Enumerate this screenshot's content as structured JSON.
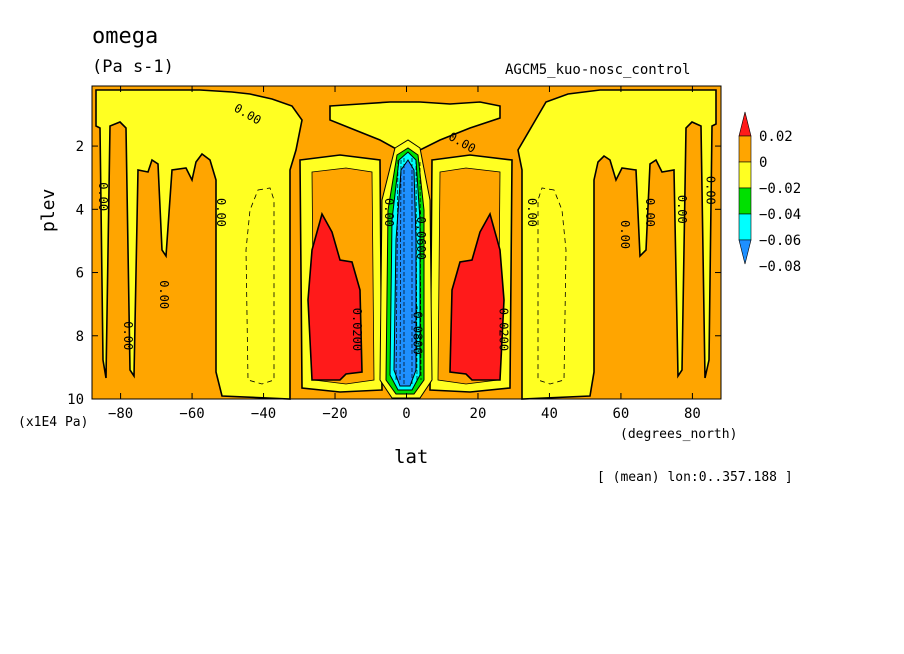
{
  "title": "omega",
  "units": "(Pa s-1)",
  "experiment": "AGCM5_kuo-nosc_control",
  "footnote": "[ (mean) lon:0..357.188 ]",
  "colors": {
    "positive_strong": "#ff1a1a",
    "positive_weak": "#ffa500",
    "negative_weak": "#ffff22",
    "negative_medium": "#00e000",
    "negative_strong": "#00ffff",
    "negative_max": "#1e90ff"
  },
  "chart_data": {
    "type": "heatmap",
    "title": "omega",
    "xlabel": "lat",
    "ylabel": "plev",
    "x_unit_label": "(degrees_north)",
    "y_unit_label": "(x1E4 Pa)",
    "xlim": [
      -88,
      88
    ],
    "ylim": [
      10,
      0.1
    ],
    "x_ticks": [
      -80,
      -60,
      -40,
      -20,
      0,
      20,
      40,
      60,
      80
    ],
    "y_ticks": [
      2,
      4,
      6,
      8,
      10
    ],
    "colorbar": {
      "labels": [
        "0.02",
        "0",
        "-0.02",
        "-0.04",
        "-0.06",
        "-0.08"
      ],
      "levels": [
        0.02,
        0,
        -0.02,
        -0.04,
        -0.06,
        -0.08
      ],
      "colors": [
        "#ff1a1a",
        "#ffa500",
        "#ffff22",
        "#00e000",
        "#00ffff",
        "#1e90ff"
      ]
    },
    "contour_labels": [
      {
        "text": "0.00",
        "lat": -45,
        "plev": 1.1
      },
      {
        "text": "0.00",
        "lat": 15,
        "plev": 2.0
      },
      {
        "text": "0.00",
        "lat": -86,
        "plev": 3.6
      },
      {
        "text": "0.00",
        "lat": -53,
        "plev": 4.1
      },
      {
        "text": "0.00",
        "lat": -6,
        "plev": 4.1
      },
      {
        "text": "0.00",
        "lat": 34,
        "plev": 4.1
      },
      {
        "text": "0.00",
        "lat": 84,
        "plev": 3.4
      },
      {
        "text": "0.00",
        "lat": 76,
        "plev": 4.0
      },
      {
        "text": "0.00",
        "lat": 67,
        "plev": 4.1
      },
      {
        "text": "0.00",
        "lat": 60,
        "plev": 4.8
      },
      {
        "text": "0.00",
        "lat": -69,
        "plev": 6.7
      },
      {
        "text": "0.00",
        "lat": -79,
        "plev": 8.0
      },
      {
        "text": "0.0200",
        "lat": -15,
        "plev": 7.8
      },
      {
        "text": "0.0200",
        "lat": 26,
        "plev": 7.8
      },
      {
        "text": "-0.0600",
        "lat": 3,
        "plev": 4.8
      },
      {
        "text": "-0.0800",
        "lat": 2,
        "plev": 7.8
      }
    ]
  }
}
